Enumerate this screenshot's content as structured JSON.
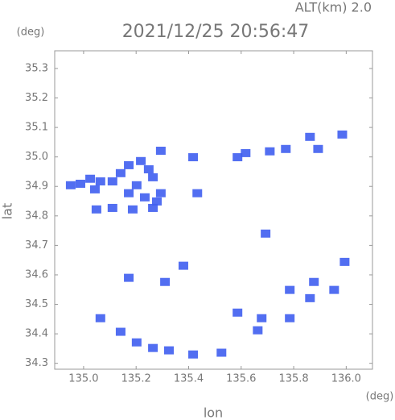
{
  "chart_data": {
    "type": "scatter",
    "title": "2021/12/25 20:56:47",
    "altitude": "ALT(km) 2.0",
    "y_unit": "(deg)",
    "x_unit": "(deg)",
    "x_label": "lon",
    "y_label": "lat",
    "color": "#3f5ef0",
    "x": [
      134.951,
      134.988,
      135.025,
      135.064,
      135.043,
      135.11,
      135.141,
      135.172,
      135.218,
      135.248,
      135.264,
      135.202,
      135.172,
      135.233,
      135.279,
      135.294,
      135.049,
      135.11,
      135.187,
      135.264,
      135.294,
      135.417,
      135.586,
      135.617,
      135.709,
      135.77,
      135.862,
      135.893,
      135.985,
      135.433,
      135.172,
      135.31,
      135.38,
      135.877,
      135.785,
      135.954,
      135.862,
      135.785,
      135.678,
      135.663,
      135.064,
      135.141,
      135.202,
      135.264,
      135.325,
      135.417,
      135.525,
      135.586,
      135.693,
      135.994
    ],
    "y": [
      34.904,
      34.909,
      34.926,
      34.917,
      34.89,
      34.917,
      34.945,
      34.972,
      34.986,
      34.958,
      34.931,
      34.904,
      34.877,
      34.863,
      34.849,
      34.877,
      34.822,
      34.827,
      34.822,
      34.827,
      35.021,
      34.999,
      34.999,
      35.013,
      35.019,
      35.027,
      35.068,
      35.027,
      35.076,
      34.877,
      34.59,
      34.576,
      34.631,
      34.576,
      34.549,
      34.549,
      34.521,
      34.453,
      34.453,
      34.412,
      34.453,
      34.407,
      34.371,
      34.352,
      34.344,
      34.33,
      34.336,
      34.472,
      34.74,
      34.644
    ],
    "xlim": [
      134.89,
      136.1
    ],
    "ylim": [
      34.28,
      35.36
    ],
    "xticks": [
      {
        "value": 135.0,
        "label": "135.0"
      },
      {
        "value": 135.2,
        "label": "135.2"
      },
      {
        "value": 135.4,
        "label": "135.4"
      },
      {
        "value": 135.6,
        "label": "135.6"
      },
      {
        "value": 135.8,
        "label": "135.8"
      },
      {
        "value": 136.0,
        "label": "136.0"
      }
    ],
    "yticks": [
      34.3,
      34.4,
      34.5,
      34.6,
      34.7,
      34.8,
      34.9,
      {
        "value": 35.0,
        "label": "35.0"
      },
      35.1,
      35.2,
      35.3
    ]
  }
}
